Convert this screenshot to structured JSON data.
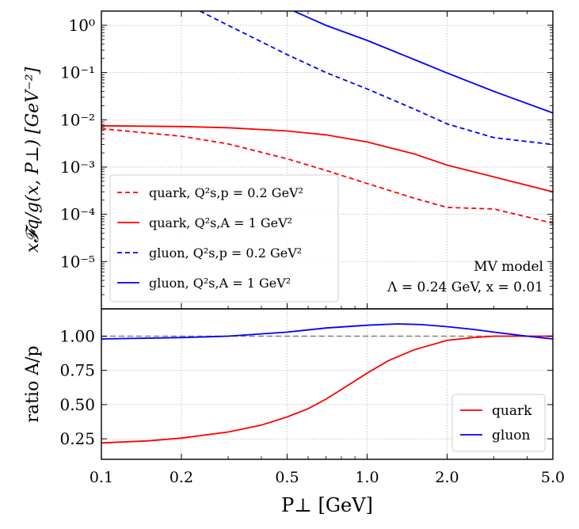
{
  "chart_data": [
    {
      "type": "line",
      "ylabel": "x𝓕q/g(x, P⊥) [GeV⁻²]",
      "xscale": "log",
      "yscale": "log",
      "xlim": [
        0.1,
        5.0
      ],
      "ylim": [
        1e-06,
        2
      ],
      "grid": true,
      "y_ticks": [
        {
          "value": 1,
          "label": "10⁰"
        },
        {
          "value": 0.1,
          "label": "10⁻¹"
        },
        {
          "value": 0.01,
          "label": "10⁻²"
        },
        {
          "value": 0.001,
          "label": "10⁻³"
        },
        {
          "value": 0.0001,
          "label": "10⁻⁴"
        },
        {
          "value": 1e-05,
          "label": "10⁻⁵"
        }
      ],
      "legend_position": "lower-left",
      "annotation": [
        "MV model",
        "Λ = 0.24 GeV, x = 0.01"
      ],
      "series": [
        {
          "name": "quark, Q²s,p = 0.2 GeV²",
          "color": "#ff0000",
          "dash": true,
          "x": [
            0.1,
            0.2,
            0.3,
            0.5,
            0.7,
            1.0,
            1.5,
            2.0,
            3.0,
            5.0
          ],
          "y": [
            0.0065,
            0.0045,
            0.0031,
            0.0015,
            0.00085,
            0.00045,
            0.00022,
            0.00014,
            0.00013,
            6.5e-05
          ]
        },
        {
          "name": "quark, Q²s,A = 1 GeV²",
          "color": "#ff0000",
          "dash": false,
          "x": [
            0.1,
            0.2,
            0.3,
            0.5,
            0.7,
            1.0,
            1.5,
            2.0,
            3.0,
            5.0
          ],
          "y": [
            0.0075,
            0.0072,
            0.0068,
            0.0058,
            0.0048,
            0.0034,
            0.0019,
            0.0011,
            0.00062,
            0.0003
          ]
        },
        {
          "name": "gluon, Q²s,p = 0.2 GeV²",
          "color": "#0000ff",
          "dash": true,
          "x": [
            0.235,
            0.3,
            0.5,
            0.7,
            1.0,
            1.5,
            2.0,
            3.0,
            5.0
          ],
          "y": [
            2.0,
            1.0,
            0.24,
            0.1,
            0.045,
            0.017,
            0.0082,
            0.0042,
            0.003
          ]
        },
        {
          "name": "gluon, Q²s,A = 1 GeV²",
          "color": "#0000ff",
          "dash": false,
          "x": [
            0.53,
            0.7,
            1.0,
            1.5,
            2.0,
            3.0,
            5.0
          ],
          "y": [
            2.0,
            1.0,
            0.48,
            0.19,
            0.098,
            0.04,
            0.014
          ]
        }
      ]
    },
    {
      "type": "line",
      "xlabel": "P⊥ [GeV]",
      "ylabel": "ratio A/p",
      "xscale": "log",
      "xlim": [
        0.1,
        5.0
      ],
      "ylim": [
        0.1,
        1.2
      ],
      "grid": true,
      "x_ticks": [
        {
          "value": 0.1,
          "label": "0.1"
        },
        {
          "value": 0.2,
          "label": "0.2"
        },
        {
          "value": 0.5,
          "label": "0.5"
        },
        {
          "value": 1.0,
          "label": "1.0"
        },
        {
          "value": 2.0,
          "label": "2.0"
        },
        {
          "value": 5.0,
          "label": "5.0"
        }
      ],
      "y_ticks": [
        {
          "value": 0.25,
          "label": "0.25"
        },
        {
          "value": 0.5,
          "label": "0.50"
        },
        {
          "value": 0.75,
          "label": "0.75"
        },
        {
          "value": 1.0,
          "label": "1.00"
        }
      ],
      "reference_line": 1.0,
      "legend_position": "lower-right",
      "series": [
        {
          "name": "quark",
          "color": "#ff0000",
          "x": [
            0.1,
            0.15,
            0.2,
            0.3,
            0.4,
            0.5,
            0.6,
            0.7,
            0.8,
            1.0,
            1.2,
            1.5,
            2.0,
            2.5,
            3.0,
            4.0,
            5.0
          ],
          "y": [
            0.22,
            0.235,
            0.255,
            0.3,
            0.35,
            0.41,
            0.47,
            0.54,
            0.61,
            0.73,
            0.82,
            0.9,
            0.97,
            0.99,
            1.0,
            1.0,
            1.0
          ]
        },
        {
          "name": "gluon",
          "color": "#0000ff",
          "x": [
            0.1,
            0.2,
            0.3,
            0.5,
            0.7,
            1.0,
            1.3,
            1.6,
            2.0,
            2.5,
            3.0,
            4.0,
            5.0
          ],
          "y": [
            0.98,
            0.99,
            1.0,
            1.03,
            1.06,
            1.08,
            1.09,
            1.085,
            1.07,
            1.05,
            1.03,
            1.0,
            0.98
          ]
        }
      ]
    }
  ]
}
